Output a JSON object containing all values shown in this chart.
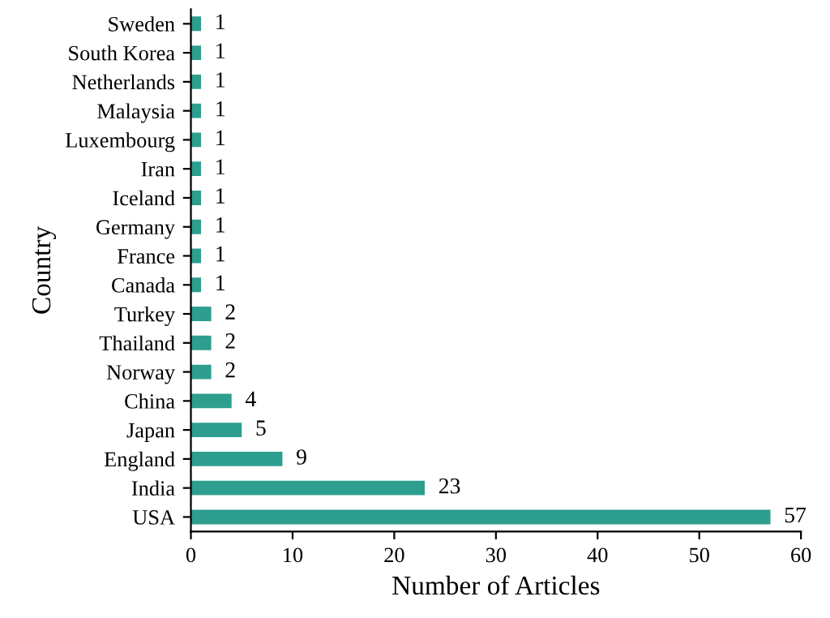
{
  "chart_data": {
    "type": "bar",
    "orientation": "horizontal",
    "xlabel": "Number of Articles",
    "ylabel": "Country",
    "categories": [
      "Sweden",
      "South Korea",
      "Netherlands",
      "Malaysia",
      "Luxembourg",
      "Iran",
      "Iceland",
      "Germany",
      "France",
      "Canada",
      "Turkey",
      "Thailand",
      "Norway",
      "China",
      "Japan",
      "England",
      "India",
      "USA"
    ],
    "values": [
      1,
      1,
      1,
      1,
      1,
      1,
      1,
      1,
      1,
      1,
      2,
      2,
      2,
      4,
      5,
      9,
      23,
      57
    ],
    "color": "#2e9e8e",
    "xlim": [
      0,
      60
    ],
    "xticks": [
      0,
      10,
      20,
      30,
      40,
      50,
      60
    ],
    "data_labels": true,
    "grid": false,
    "legend": false
  }
}
